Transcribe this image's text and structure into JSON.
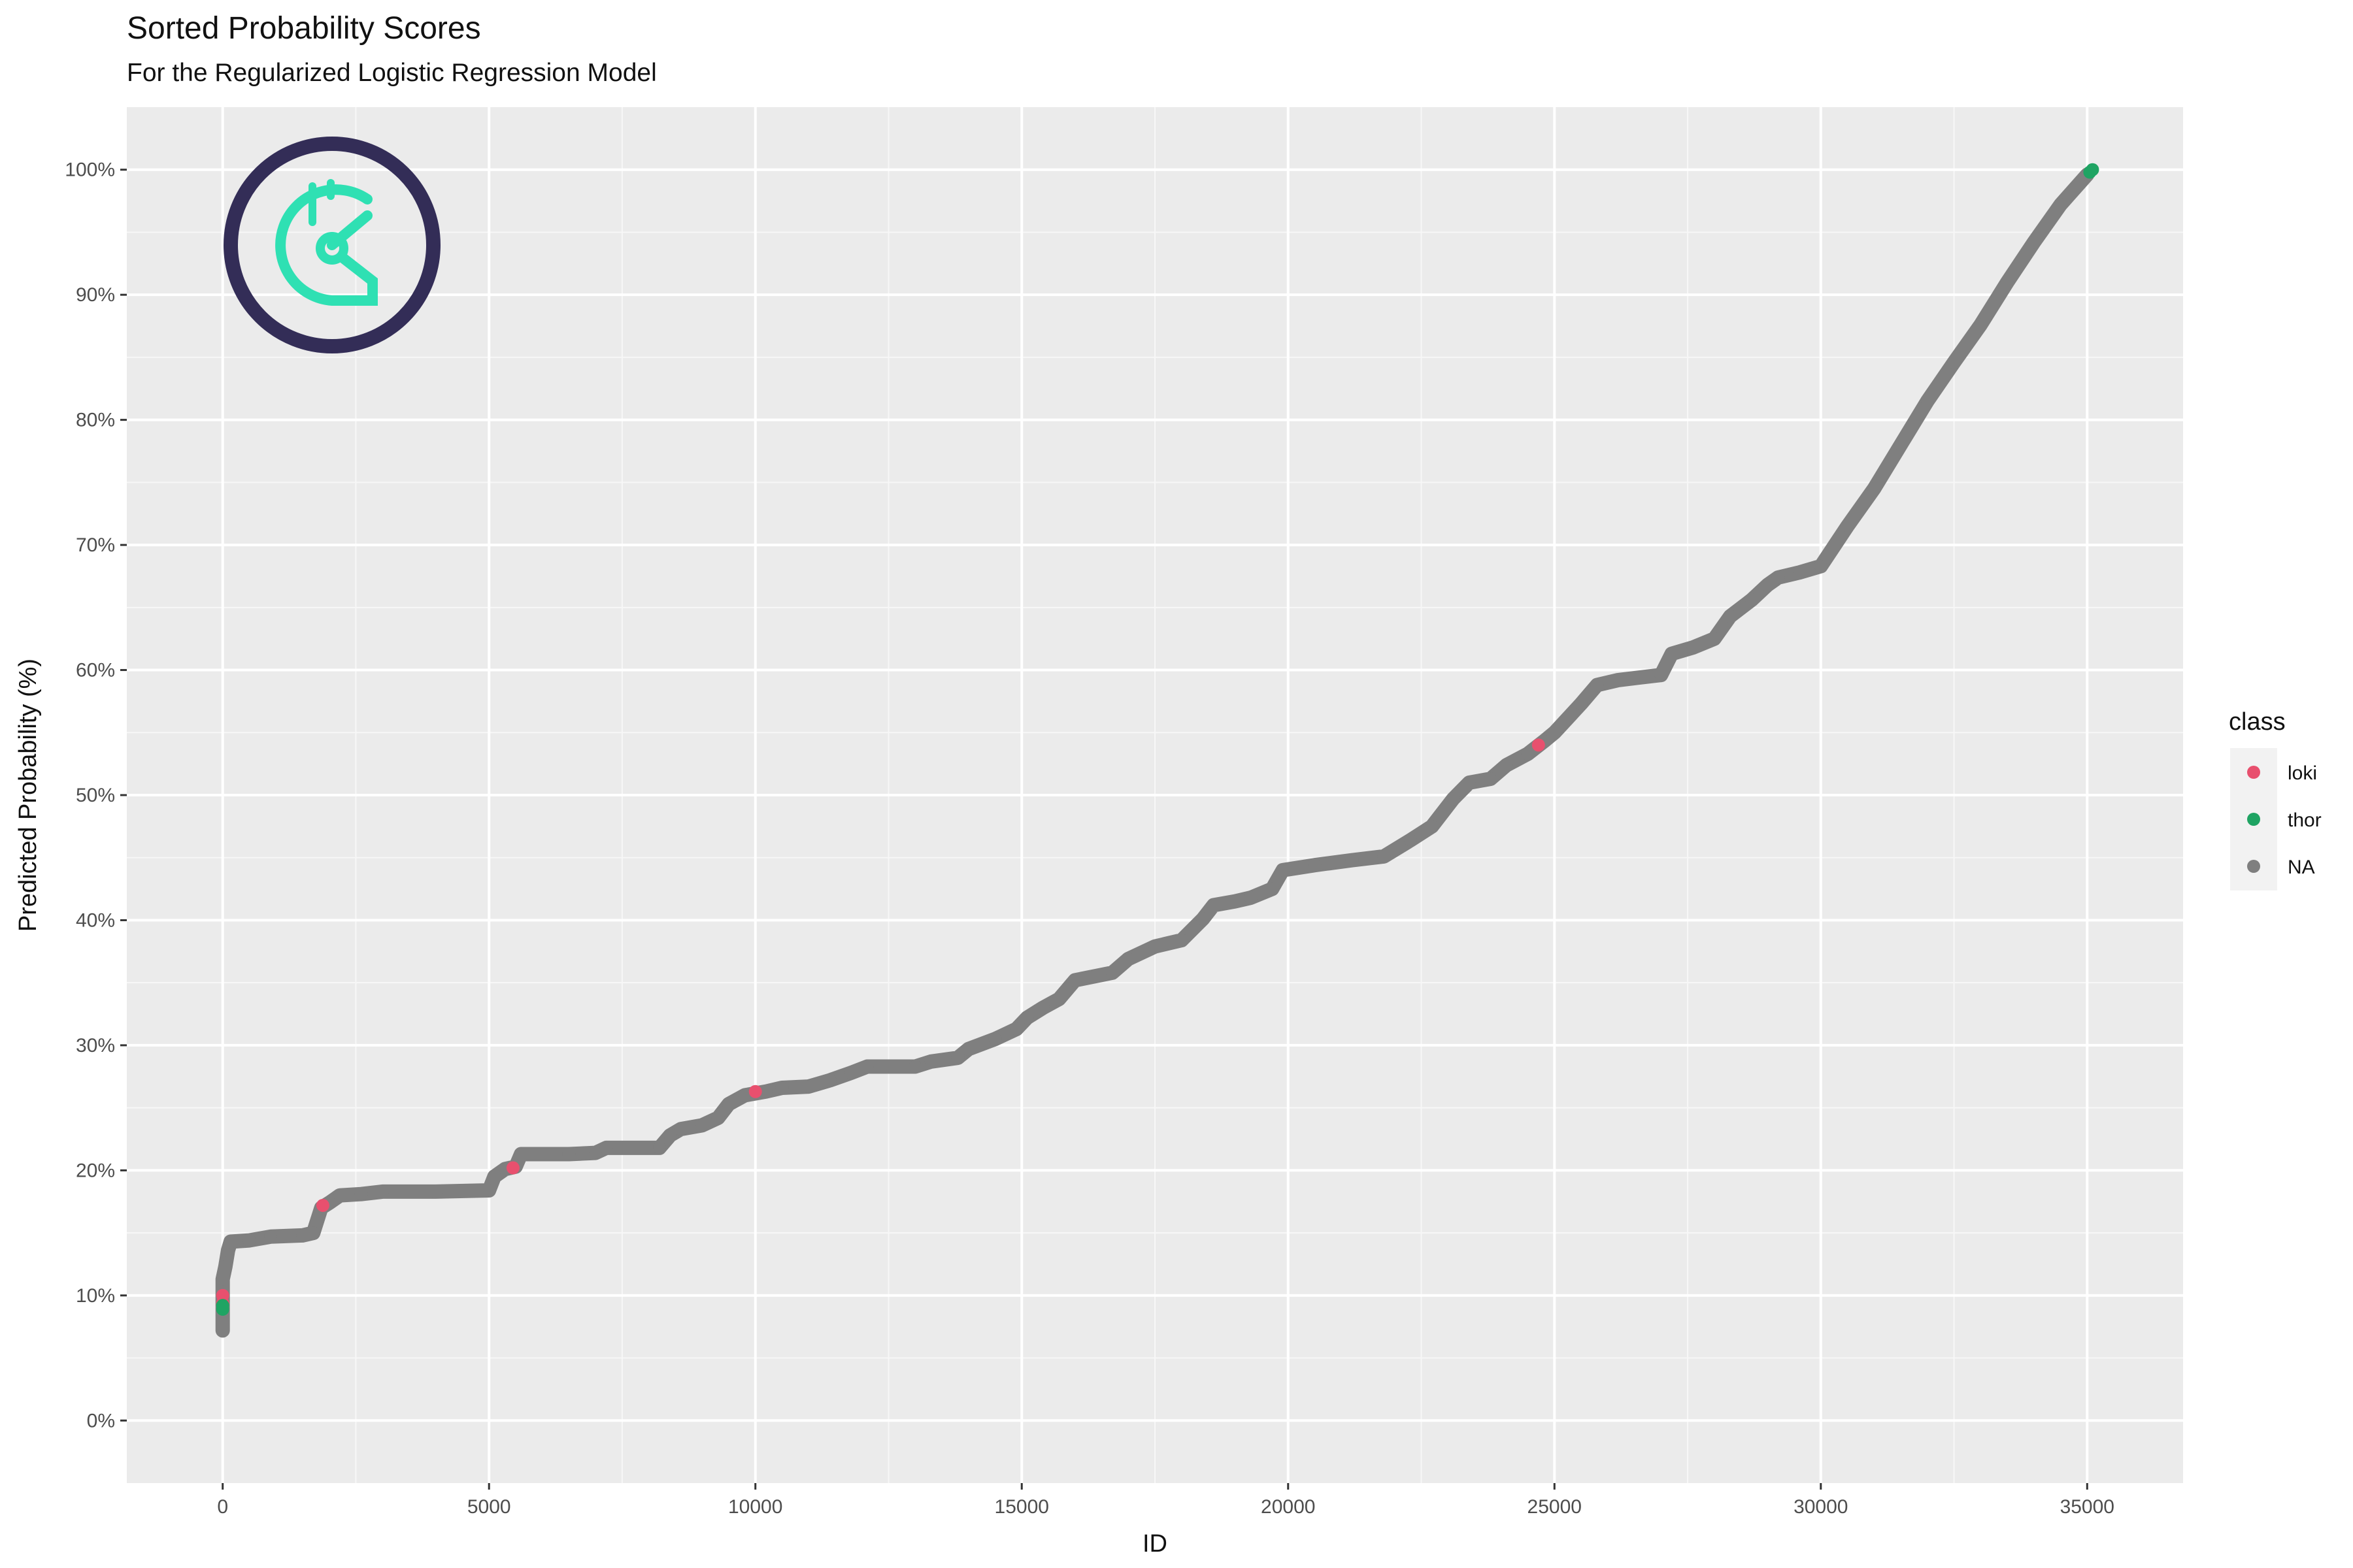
{
  "chart_data": {
    "type": "scatter",
    "title": "Sorted Probability Scores",
    "subtitle": "For the Regularized Logistic Regression Model",
    "xlabel": "ID",
    "ylabel": "Predicted Probability (%)",
    "xlim": [
      -1800,
      36800
    ],
    "ylim": [
      -5,
      105
    ],
    "x_ticks": [
      0,
      5000,
      10000,
      15000,
      20000,
      25000,
      30000,
      35000
    ],
    "x_tick_labels": [
      "0",
      "5000",
      "10000",
      "15000",
      "20000",
      "25000",
      "30000",
      "35000"
    ],
    "y_ticks": [
      0,
      10,
      20,
      30,
      40,
      50,
      60,
      70,
      80,
      90,
      100
    ],
    "y_tick_labels": [
      "0%",
      "10%",
      "20%",
      "30%",
      "40%",
      "50%",
      "60%",
      "70%",
      "80%",
      "90%",
      "100%"
    ],
    "grid": true,
    "legend": {
      "title": "class",
      "position": "right",
      "entries": [
        {
          "label": "loki",
          "color": "#E8506E"
        },
        {
          "label": "thor",
          "color": "#1FA463"
        },
        {
          "label": "NA",
          "color": "#7F7F7F"
        }
      ]
    },
    "series": [
      {
        "name": "NA",
        "color": "#7F7F7F",
        "points": [
          [
            0,
            7.2
          ],
          [
            0,
            8.4
          ],
          [
            0,
            11.3
          ],
          [
            50,
            12.3
          ],
          [
            100,
            13.6
          ],
          [
            150,
            14.3
          ],
          [
            500,
            14.4
          ],
          [
            900,
            14.7
          ],
          [
            1500,
            14.8
          ],
          [
            1700,
            15.0
          ],
          [
            1850,
            17.0
          ],
          [
            2000,
            17.4
          ],
          [
            2200,
            18.0
          ],
          [
            2600,
            18.1
          ],
          [
            3000,
            18.3
          ],
          [
            4000,
            18.3
          ],
          [
            5000,
            18.4
          ],
          [
            5100,
            19.5
          ],
          [
            5300,
            20.1
          ],
          [
            5500,
            20.3
          ],
          [
            5600,
            21.3
          ],
          [
            6500,
            21.3
          ],
          [
            7000,
            21.4
          ],
          [
            7200,
            21.8
          ],
          [
            8200,
            21.8
          ],
          [
            8400,
            22.8
          ],
          [
            8600,
            23.3
          ],
          [
            9000,
            23.6
          ],
          [
            9300,
            24.2
          ],
          [
            9500,
            25.3
          ],
          [
            9800,
            26.0
          ],
          [
            10200,
            26.3
          ],
          [
            10500,
            26.6
          ],
          [
            11000,
            26.7
          ],
          [
            11400,
            27.2
          ],
          [
            11800,
            27.8
          ],
          [
            12100,
            28.3
          ],
          [
            13000,
            28.3
          ],
          [
            13300,
            28.7
          ],
          [
            13800,
            29.0
          ],
          [
            14000,
            29.7
          ],
          [
            14500,
            30.5
          ],
          [
            14900,
            31.3
          ],
          [
            15100,
            32.2
          ],
          [
            15400,
            33.0
          ],
          [
            15700,
            33.7
          ],
          [
            16000,
            35.2
          ],
          [
            16700,
            35.8
          ],
          [
            17000,
            36.9
          ],
          [
            17500,
            37.9
          ],
          [
            18000,
            38.4
          ],
          [
            18400,
            40.1
          ],
          [
            18600,
            41.2
          ],
          [
            19000,
            41.5
          ],
          [
            19300,
            41.8
          ],
          [
            19700,
            42.5
          ],
          [
            19900,
            44.0
          ],
          [
            20500,
            44.4
          ],
          [
            21200,
            44.8
          ],
          [
            21800,
            45.1
          ],
          [
            22300,
            46.4
          ],
          [
            22700,
            47.5
          ],
          [
            23100,
            49.7
          ],
          [
            23400,
            51.0
          ],
          [
            23800,
            51.3
          ],
          [
            24100,
            52.4
          ],
          [
            24500,
            53.3
          ],
          [
            24800,
            54.3
          ],
          [
            25000,
            55.0
          ],
          [
            25500,
            57.3
          ],
          [
            25800,
            58.8
          ],
          [
            26200,
            59.2
          ],
          [
            26600,
            59.4
          ],
          [
            27000,
            59.6
          ],
          [
            27200,
            61.3
          ],
          [
            27600,
            61.8
          ],
          [
            28000,
            62.5
          ],
          [
            28300,
            64.3
          ],
          [
            28700,
            65.6
          ],
          [
            29000,
            66.8
          ],
          [
            29200,
            67.4
          ],
          [
            29600,
            67.8
          ],
          [
            30000,
            68.3
          ],
          [
            30500,
            71.5
          ],
          [
            31000,
            74.5
          ],
          [
            31500,
            78.0
          ],
          [
            32000,
            81.5
          ],
          [
            32500,
            84.6
          ],
          [
            33000,
            87.6
          ],
          [
            33500,
            91.0
          ],
          [
            34000,
            94.2
          ],
          [
            34500,
            97.2
          ],
          [
            35000,
            99.6
          ]
        ]
      },
      {
        "name": "loki",
        "color": "#E8506E",
        "points": [
          [
            0,
            10.0
          ],
          [
            0,
            9.4
          ],
          [
            1880,
            17.2
          ],
          [
            5450,
            20.2
          ],
          [
            10000,
            26.3
          ],
          [
            24700,
            54.0
          ]
        ]
      },
      {
        "name": "thor",
        "color": "#1FA463",
        "points": [
          [
            0,
            8.9
          ],
          [
            0,
            9.2
          ],
          [
            35050,
            99.8
          ],
          [
            35100,
            100.0
          ]
        ]
      }
    ]
  },
  "logo": {
    "name": "gnosis-style-owl-logo",
    "ring_color": "#332D57",
    "glyph_color": "#2FE0B3"
  },
  "colors": {
    "panel_bg": "#EBEBEB",
    "grid_major": "#FFFFFF"
  }
}
